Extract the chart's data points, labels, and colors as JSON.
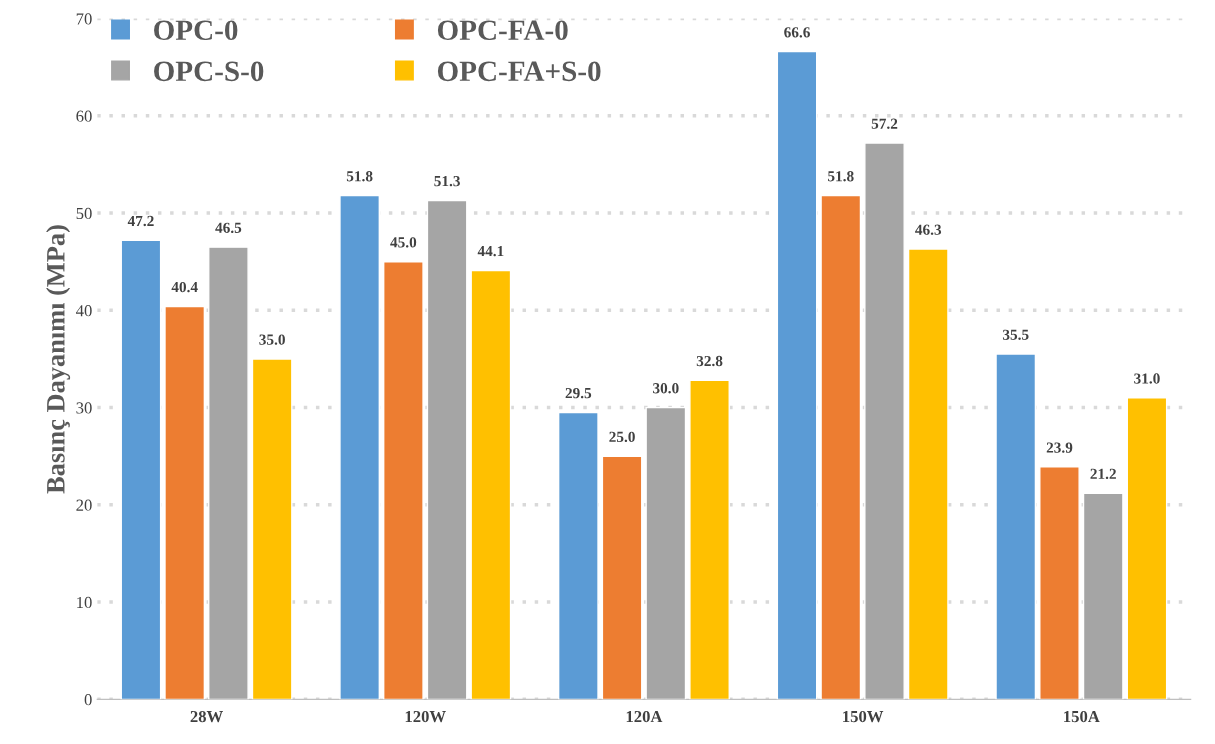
{
  "chart_data": {
    "type": "bar",
    "ylabel": "Basınç Dayanımı (MPa)",
    "categories": [
      "28W",
      "120W",
      "120A",
      "150W",
      "150A"
    ],
    "series": [
      {
        "name": "OPC-0",
        "color": "#5b9bd5",
        "values": [
          47.2,
          51.8,
          29.5,
          66.6,
          35.5
        ],
        "value_labels": [
          "47.2",
          "51.8",
          "29.5",
          "66.6",
          "35.5"
        ]
      },
      {
        "name": "OPC-FA-0",
        "color": "#ed7d31",
        "values": [
          40.4,
          45.0,
          25.0,
          51.8,
          23.9
        ],
        "value_labels": [
          "40.4",
          "45.0",
          "25.0",
          "51.8",
          "23.9"
        ]
      },
      {
        "name": "OPC-S-0",
        "color": "#a5a5a5",
        "values": [
          46.5,
          51.3,
          30.0,
          57.2,
          21.2
        ],
        "value_labels": [
          "46.5",
          "51.3",
          "30.0",
          "57.2",
          "21.2"
        ]
      },
      {
        "name": "OPC-FA+S-0",
        "color": "#ffc000",
        "values": [
          35.0,
          44.1,
          32.8,
          46.3,
          31.0
        ],
        "value_labels": [
          "35.0",
          "44.1",
          "32.8",
          "46.3",
          "31.0"
        ]
      }
    ],
    "ylim": [
      0,
      70
    ],
    "yticks": [
      0,
      10,
      20,
      30,
      40,
      50,
      60,
      70
    ],
    "grid": "y",
    "legend": "top left"
  }
}
